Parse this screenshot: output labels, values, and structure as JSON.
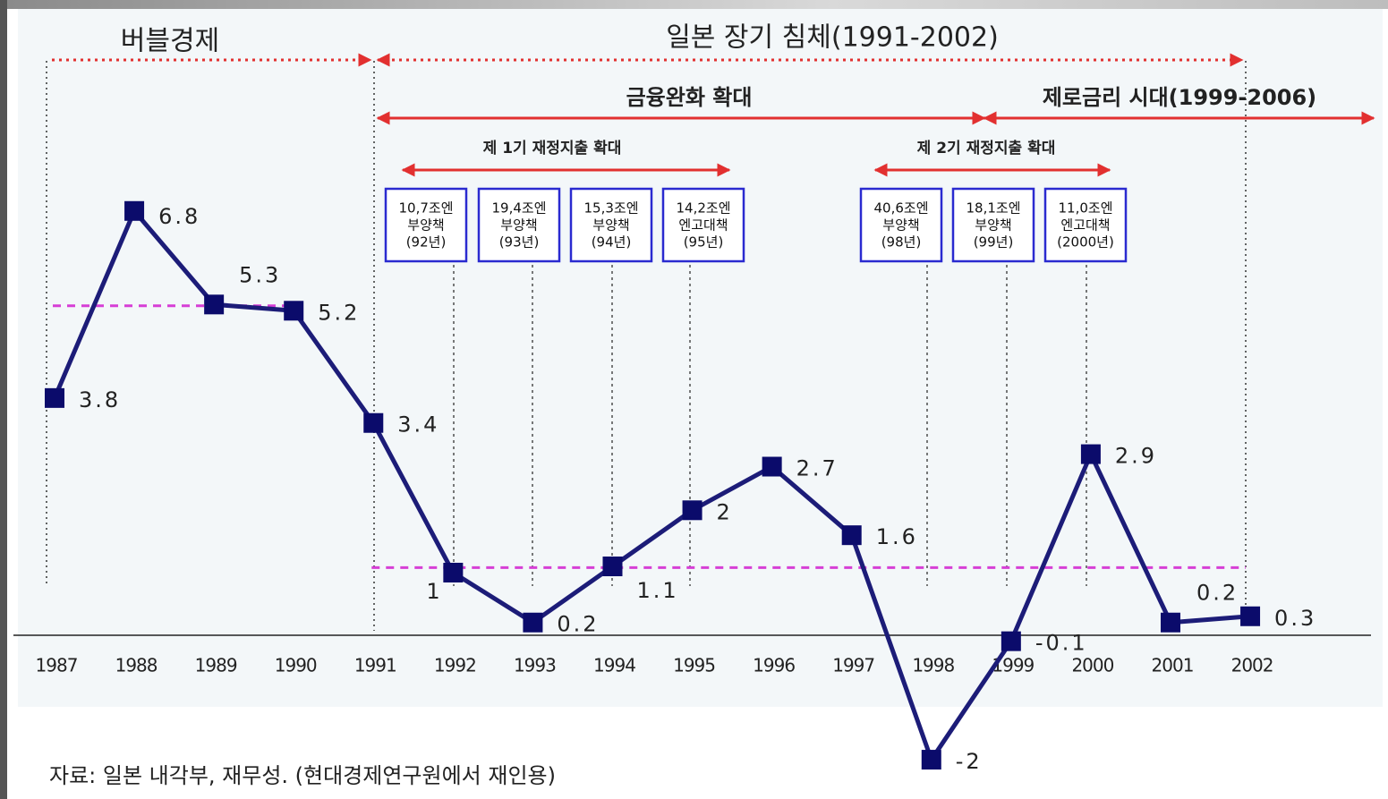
{
  "chart_data": {
    "type": "line",
    "title": "일본 장기 침체(1991-2002)",
    "annotations": {
      "bubble": "버블경제",
      "easing": "금융완화 확대",
      "zero_rate": "제로금리 시대(1999-2006)",
      "fiscal_1": "제 1기 재정지출 확대",
      "fiscal_2": "제 2기 재정지출 확대"
    },
    "packages": [
      {
        "lines": [
          "10,7조엔",
          "부양책",
          "(92년)"
        ]
      },
      {
        "lines": [
          "19,4조엔",
          "부양책",
          "(93년)"
        ]
      },
      {
        "lines": [
          "15,3조엔",
          "부양책",
          "(94년)"
        ]
      },
      {
        "lines": [
          "14,2조엔",
          "엔고대책",
          "(95년)"
        ]
      },
      {
        "lines": [
          "40,6조엔",
          "부양책",
          "(98년)"
        ]
      },
      {
        "lines": [
          "18,1조엔",
          "부양책",
          "(99년)"
        ]
      },
      {
        "lines": [
          "11,0조엔",
          "엔고대책",
          "(2000년)"
        ]
      }
    ],
    "source": "자료: 일본 내각부, 재무성. (현대경제연구원에서 재인용)",
    "categories": [
      "1987",
      "1988",
      "1989",
      "1990",
      "1991",
      "1992",
      "1993",
      "1994",
      "1995",
      "1996",
      "1997",
      "1998",
      "1999",
      "2000",
      "2001",
      "2002"
    ],
    "series": [
      {
        "color": "#1c1c78",
        "values": [
          3.8,
          6.8,
          5.3,
          5.2,
          3.4,
          1,
          0.2,
          1.1,
          2,
          2.7,
          1.6,
          -2,
          -0.1,
          2.9,
          0.2,
          0.3
        ]
      }
    ],
    "reference_lines": [
      {
        "from": "1987",
        "to": "1990",
        "value": 5.28,
        "color": "#d63fd6"
      },
      {
        "from": "1991",
        "to": "2002",
        "value": 1.08,
        "color": "#d63fd6"
      }
    ],
    "ylim": [
      -2.2,
      7.5
    ]
  }
}
